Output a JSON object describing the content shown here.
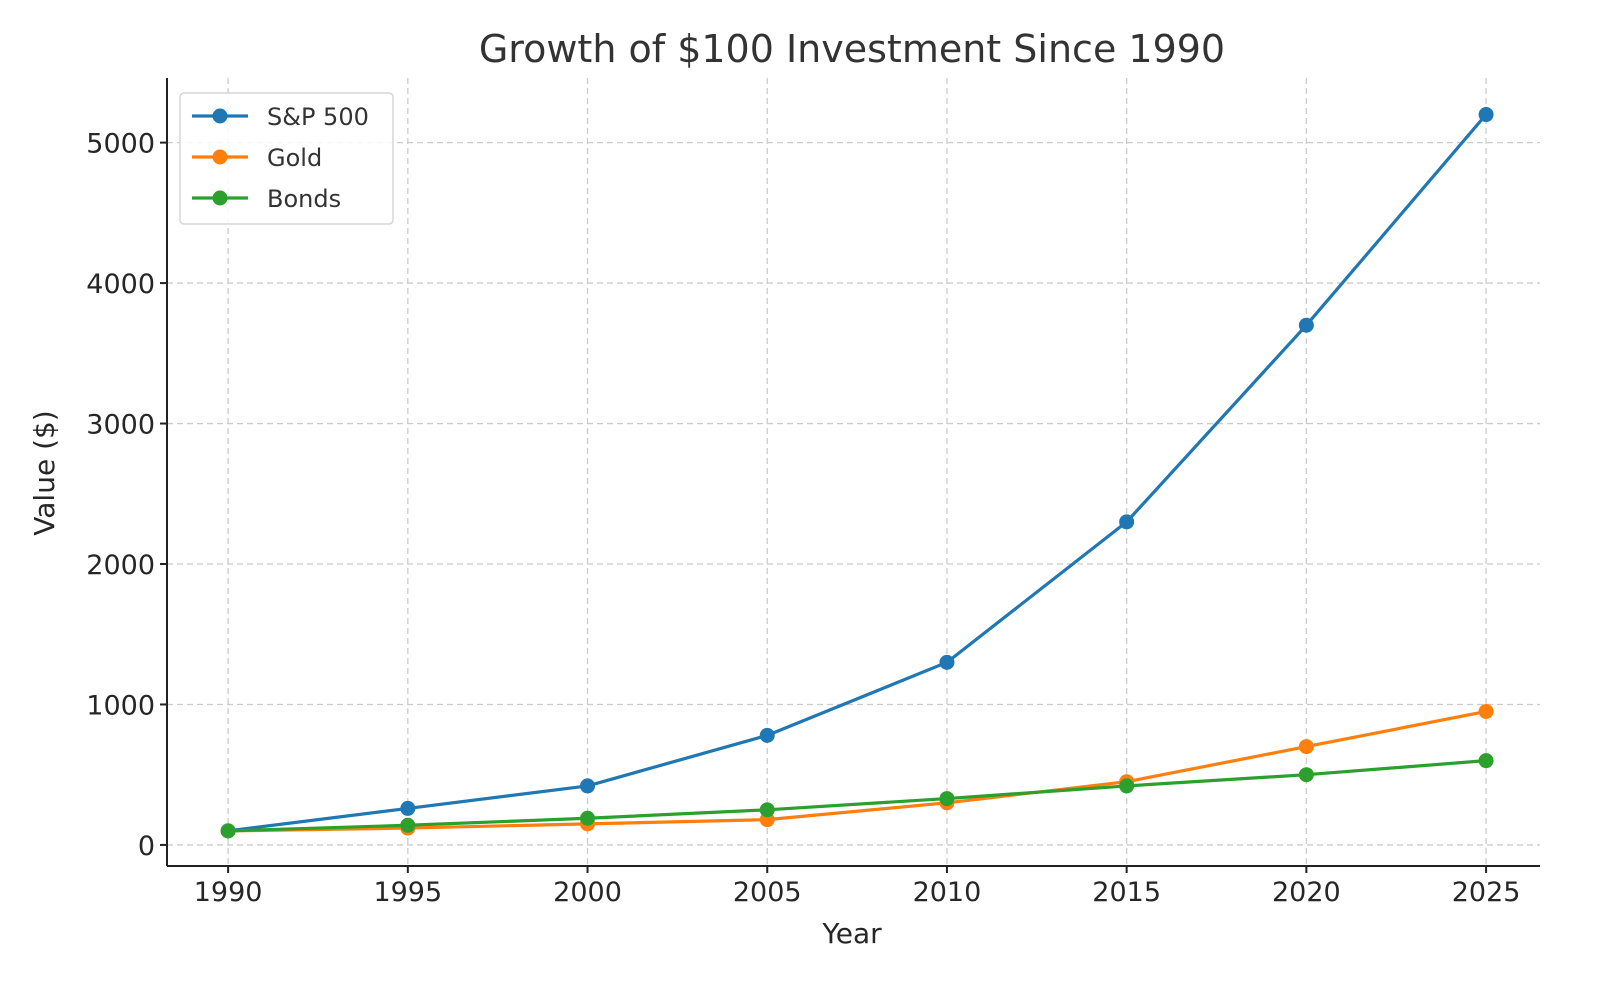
{
  "chart_data": {
    "type": "line",
    "title": "Growth of $100 Investment Since 1990",
    "xlabel": "Year",
    "ylabel": "Value ($)",
    "x": [
      1990,
      1995,
      2000,
      2005,
      2010,
      2015,
      2020,
      2025
    ],
    "xlim": [
      1988.3,
      2026.5
    ],
    "ylim": [
      -150,
      5460
    ],
    "xticks": [
      1990,
      1995,
      2000,
      2005,
      2010,
      2015,
      2020,
      2025
    ],
    "yticks": [
      0,
      1000,
      2000,
      3000,
      4000,
      5000
    ],
    "grid": true,
    "legend_position": "top-left",
    "series": [
      {
        "name": "S&P 500",
        "color": "#1f77b4",
        "values": [
          100,
          260,
          420,
          780,
          1300,
          2300,
          3700,
          5200
        ]
      },
      {
        "name": "Gold",
        "color": "#ff7f0e",
        "values": [
          100,
          120,
          150,
          180,
          300,
          450,
          700,
          950
        ]
      },
      {
        "name": "Bonds",
        "color": "#2ca02c",
        "values": [
          100,
          140,
          190,
          250,
          330,
          420,
          500,
          600
        ]
      }
    ]
  }
}
